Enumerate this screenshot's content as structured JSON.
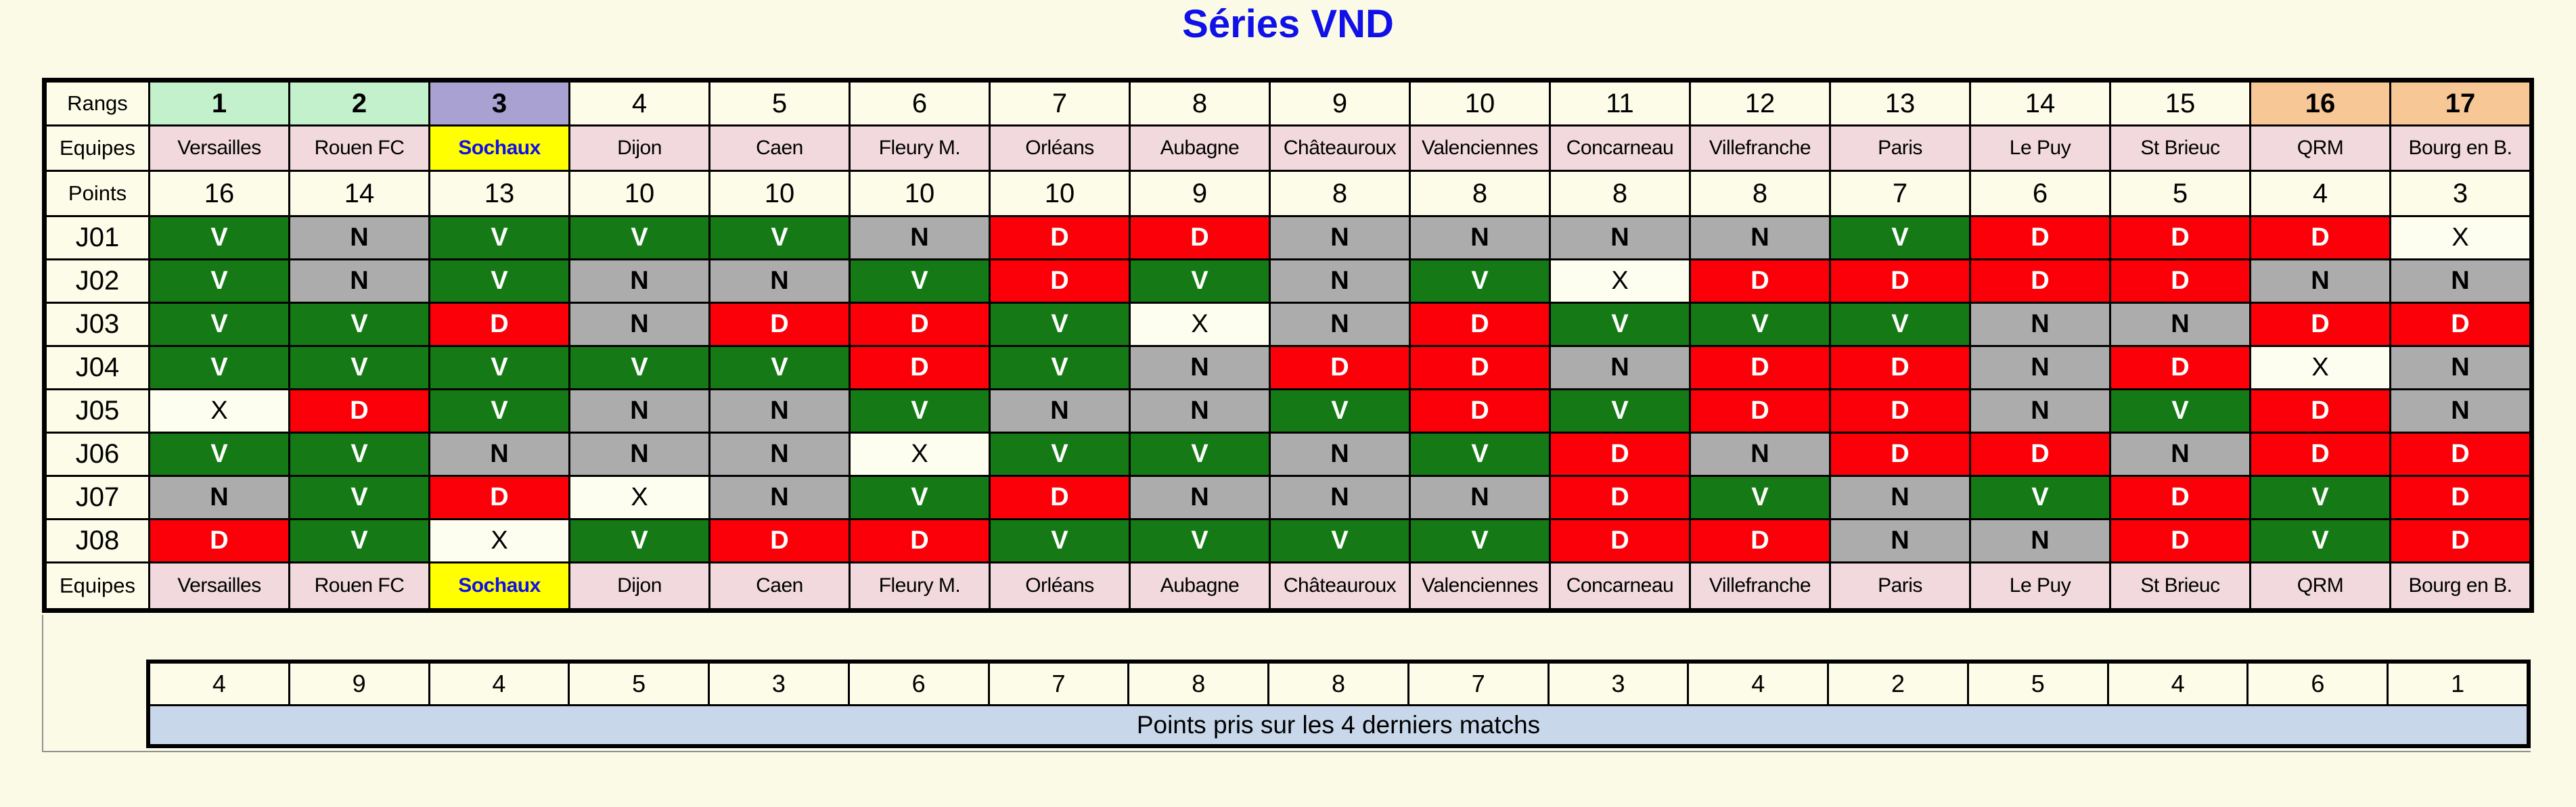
{
  "title": "Séries VND",
  "colors": {
    "page_background": "#fafae6",
    "title_blue": "#1010e8",
    "cell_cream": "#fcfce8",
    "team_row_pink": "#f1d9de",
    "team_highlight_yellow": "#ffff00",
    "team_highlight_text_blue": "#1010e8",
    "rank_top_green": "#c3f1cb",
    "rank_third_purple": "#a9a1d2",
    "rank_bottom_orange": "#f7c795",
    "result_V_green": "#157a15",
    "result_N_gray": "#acacac",
    "result_D_red": "#fb0008",
    "result_X_cream": "#fdfdf0",
    "caption_bar_blue": "#c8d8ea",
    "grid_border": "#000000"
  },
  "table": {
    "row_labels": {
      "rangs": "Rangs",
      "equipes": "Equipes",
      "points": "Points",
      "equipes_bottom": "Equipes"
    },
    "ranks": [
      "1",
      "2",
      "3",
      "4",
      "5",
      "6",
      "7",
      "8",
      "9",
      "10",
      "11",
      "12",
      "13",
      "14",
      "15",
      "16",
      "17"
    ],
    "rank_highlights": {
      "1": "green",
      "2": "green",
      "3": "purple",
      "16": "orange",
      "17": "orange"
    },
    "teams": [
      "Versailles",
      "Rouen FC",
      "Sochaux",
      "Dijon",
      "Caen",
      "Fleury M.",
      "Orléans",
      "Aubagne",
      "Châteauroux",
      "Valenciennes",
      "Concarneau",
      "Villefranche",
      "Paris",
      "Le Puy",
      "St Brieuc",
      "QRM",
      "Bourg en B."
    ],
    "highlighted_team_index": 2,
    "points": [
      "16",
      "14",
      "13",
      "10",
      "10",
      "10",
      "10",
      "9",
      "8",
      "8",
      "8",
      "8",
      "7",
      "6",
      "5",
      "4",
      "3"
    ],
    "matchdays": [
      "J01",
      "J02",
      "J03",
      "J04",
      "J05",
      "J06",
      "J07",
      "J08"
    ],
    "results": [
      [
        "V",
        "N",
        "V",
        "V",
        "V",
        "N",
        "D",
        "D",
        "N",
        "N",
        "N",
        "N",
        "V",
        "D",
        "D",
        "D",
        "X"
      ],
      [
        "V",
        "N",
        "V",
        "N",
        "N",
        "V",
        "D",
        "V",
        "N",
        "V",
        "X",
        "D",
        "D",
        "D",
        "D",
        "N",
        "N"
      ],
      [
        "V",
        "V",
        "D",
        "N",
        "D",
        "D",
        "V",
        "X",
        "N",
        "D",
        "V",
        "V",
        "V",
        "N",
        "N",
        "D",
        "D"
      ],
      [
        "V",
        "V",
        "V",
        "V",
        "V",
        "D",
        "V",
        "N",
        "D",
        "D",
        "N",
        "D",
        "D",
        "N",
        "D",
        "X",
        "N"
      ],
      [
        "X",
        "D",
        "V",
        "N",
        "N",
        "V",
        "N",
        "N",
        "V",
        "D",
        "V",
        "D",
        "D",
        "N",
        "V",
        "D",
        "N"
      ],
      [
        "V",
        "V",
        "N",
        "N",
        "N",
        "X",
        "V",
        "V",
        "N",
        "V",
        "D",
        "N",
        "D",
        "D",
        "N",
        "D",
        "D"
      ],
      [
        "N",
        "V",
        "D",
        "X",
        "N",
        "V",
        "D",
        "N",
        "N",
        "N",
        "D",
        "V",
        "N",
        "V",
        "D",
        "V",
        "D"
      ],
      [
        "D",
        "V",
        "X",
        "V",
        "D",
        "D",
        "V",
        "V",
        "V",
        "V",
        "D",
        "D",
        "N",
        "N",
        "D",
        "V",
        "D"
      ]
    ]
  },
  "summary": {
    "last4_points": [
      "4",
      "9",
      "4",
      "5",
      "3",
      "6",
      "7",
      "8",
      "8",
      "7",
      "3",
      "4",
      "2",
      "5",
      "4",
      "6",
      "1"
    ],
    "caption": "Points pris sur les 4 derniers matchs"
  },
  "chart_data": {
    "type": "table",
    "title": "Séries VND",
    "columns_header_rows": [
      "Rangs",
      "Equipes",
      "Points"
    ],
    "ranks": [
      1,
      2,
      3,
      4,
      5,
      6,
      7,
      8,
      9,
      10,
      11,
      12,
      13,
      14,
      15,
      16,
      17
    ],
    "teams": [
      "Versailles",
      "Rouen FC",
      "Sochaux",
      "Dijon",
      "Caen",
      "Fleury M.",
      "Orléans",
      "Aubagne",
      "Châteauroux",
      "Valenciennes",
      "Concarneau",
      "Villefranche",
      "Paris",
      "Le Puy",
      "St Brieuc",
      "QRM",
      "Bourg en B."
    ],
    "points": [
      16,
      14,
      13,
      10,
      10,
      10,
      10,
      9,
      8,
      8,
      8,
      8,
      7,
      6,
      5,
      4,
      3
    ],
    "matchdays": [
      "J01",
      "J02",
      "J03",
      "J04",
      "J05",
      "J06",
      "J07",
      "J08"
    ],
    "results_by_matchday": {
      "J01": [
        "V",
        "N",
        "V",
        "V",
        "V",
        "N",
        "D",
        "D",
        "N",
        "N",
        "N",
        "N",
        "V",
        "D",
        "D",
        "D",
        "X"
      ],
      "J02": [
        "V",
        "N",
        "V",
        "N",
        "N",
        "V",
        "D",
        "V",
        "N",
        "V",
        "X",
        "D",
        "D",
        "D",
        "D",
        "N",
        "N"
      ],
      "J03": [
        "V",
        "V",
        "D",
        "N",
        "D",
        "D",
        "V",
        "X",
        "N",
        "D",
        "V",
        "V",
        "V",
        "N",
        "N",
        "D",
        "D"
      ],
      "J04": [
        "V",
        "V",
        "V",
        "V",
        "V",
        "D",
        "V",
        "N",
        "D",
        "D",
        "N",
        "D",
        "D",
        "N",
        "D",
        "X",
        "N"
      ],
      "J05": [
        "X",
        "D",
        "V",
        "N",
        "N",
        "V",
        "N",
        "N",
        "V",
        "D",
        "V",
        "D",
        "D",
        "N",
        "V",
        "D",
        "N"
      ],
      "J06": [
        "V",
        "V",
        "N",
        "N",
        "N",
        "X",
        "V",
        "V",
        "N",
        "V",
        "D",
        "N",
        "D",
        "D",
        "N",
        "D",
        "D"
      ],
      "J07": [
        "N",
        "V",
        "D",
        "X",
        "N",
        "V",
        "D",
        "N",
        "N",
        "N",
        "D",
        "V",
        "N",
        "V",
        "D",
        "V",
        "D"
      ],
      "J08": [
        "D",
        "V",
        "X",
        "V",
        "D",
        "D",
        "V",
        "V",
        "V",
        "V",
        "D",
        "D",
        "N",
        "N",
        "D",
        "V",
        "D"
      ]
    },
    "last4_points_row": [
      4,
      9,
      4,
      5,
      3,
      6,
      7,
      8,
      8,
      7,
      3,
      4,
      2,
      5,
      4,
      6,
      1
    ],
    "last4_caption": "Points pris sur les 4 derniers matchs",
    "result_cell_colors": {
      "V": "#157a15",
      "N": "#acacac",
      "D": "#fb0008",
      "X": "#fdfdf0"
    },
    "rank_cell_colors": {
      "1": "#c3f1cb",
      "2": "#c3f1cb",
      "3": "#a9a1d2",
      "16": "#f7c795",
      "17": "#f7c795"
    }
  }
}
